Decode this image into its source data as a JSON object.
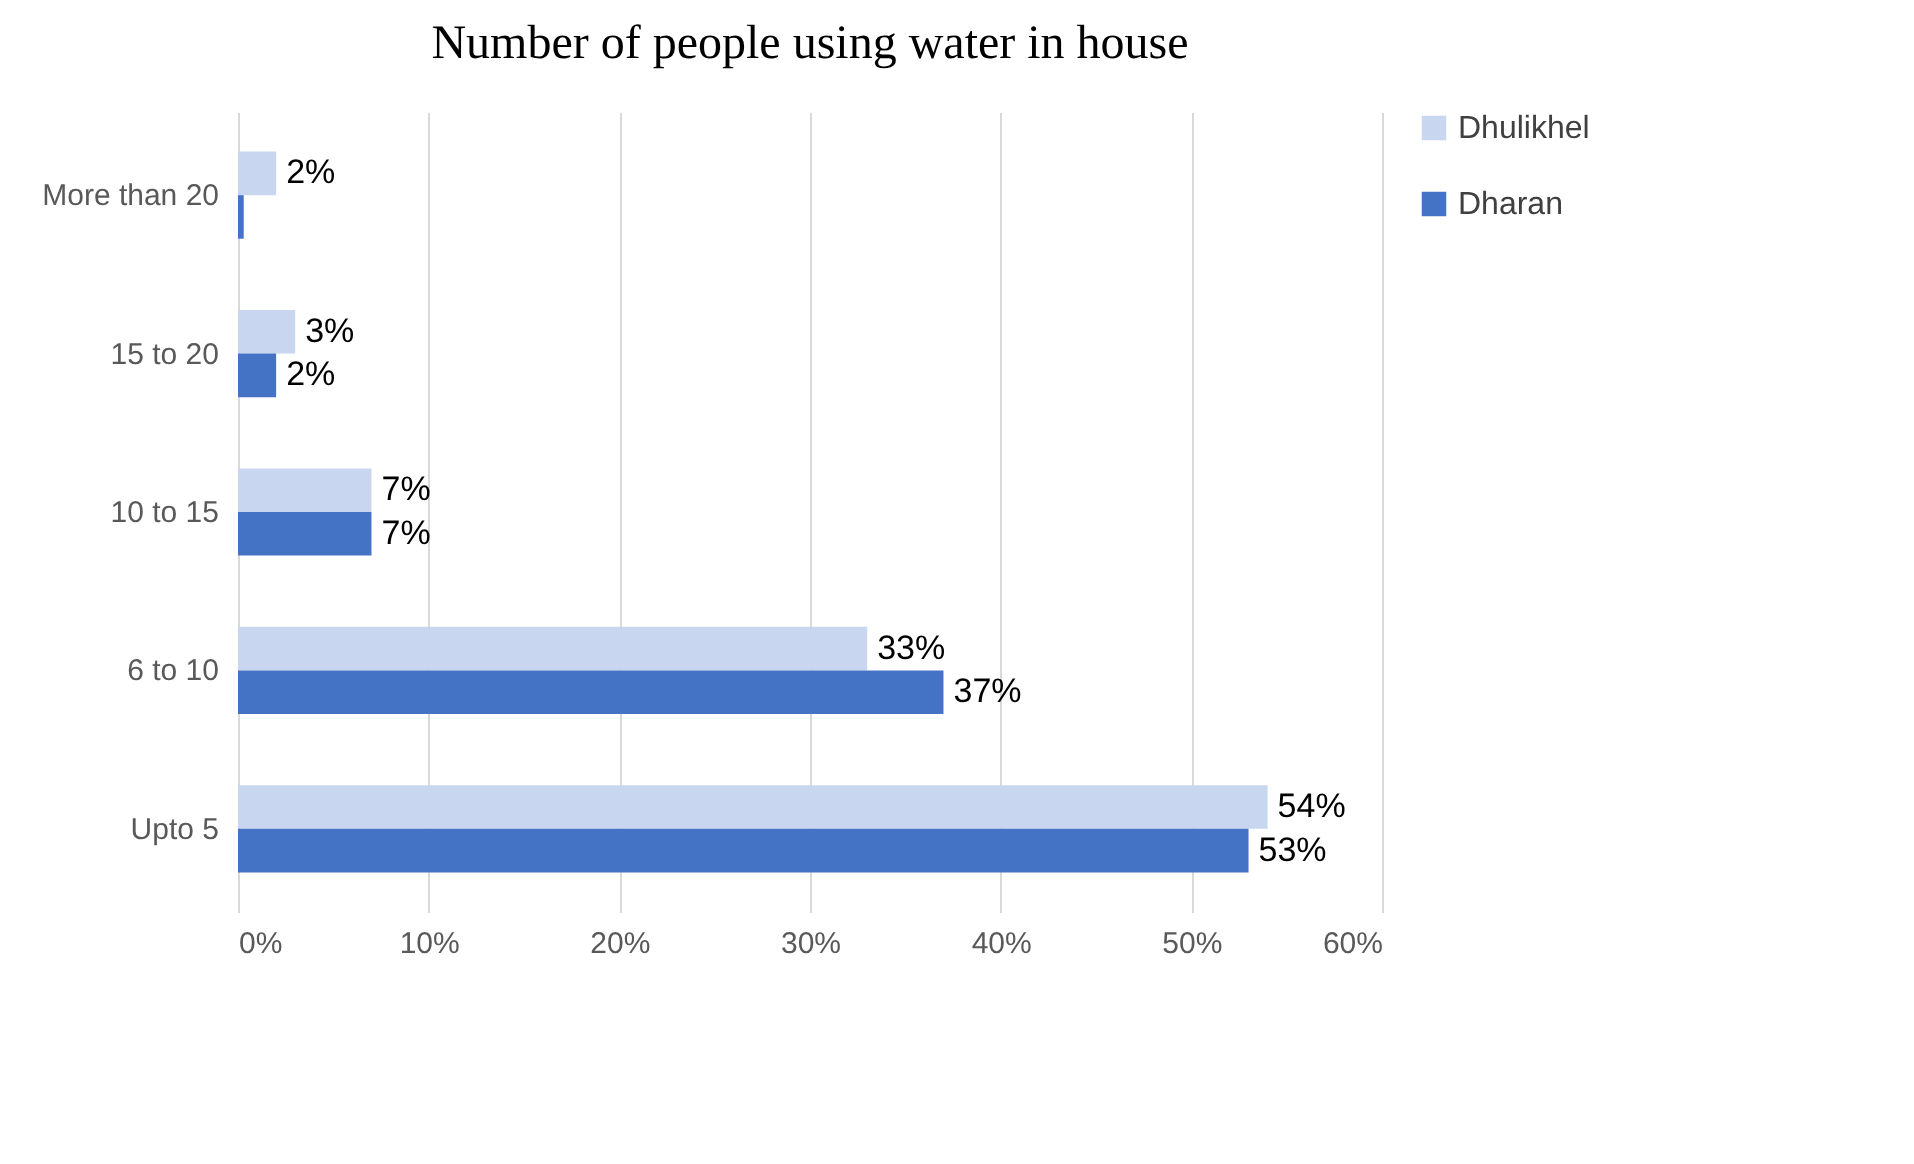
{
  "chart_data": {
    "type": "bar",
    "orientation": "horizontal",
    "title": "Number of people using water in house",
    "categories": [
      "More than 20",
      "15 to 20",
      "10 to 15",
      "6 to 10",
      "Upto 5"
    ],
    "series": [
      {
        "name": "Dhulikhel",
        "color": "#c9d6ef",
        "values": [
          2,
          3,
          7,
          33,
          54
        ],
        "value_labels": [
          "2%",
          "3%",
          "7%",
          "33%",
          "54%"
        ]
      },
      {
        "name": "Dharan",
        "color": "#4472c4",
        "values": [
          0.3,
          2,
          7,
          37,
          53
        ],
        "value_labels": [
          null,
          "2%",
          "7%",
          "37%",
          "53%"
        ]
      }
    ],
    "xlim": [
      0,
      60
    ],
    "xticks": [
      {
        "value": 0,
        "label": "0%"
      },
      {
        "value": 10,
        "label": "10%"
      },
      {
        "value": 20,
        "label": "20%"
      },
      {
        "value": 30,
        "label": "30%"
      },
      {
        "value": 40,
        "label": "40%"
      },
      {
        "value": 50,
        "label": "50%"
      },
      {
        "value": 60,
        "label": "60%"
      }
    ],
    "grid": "x",
    "legend": "right"
  }
}
